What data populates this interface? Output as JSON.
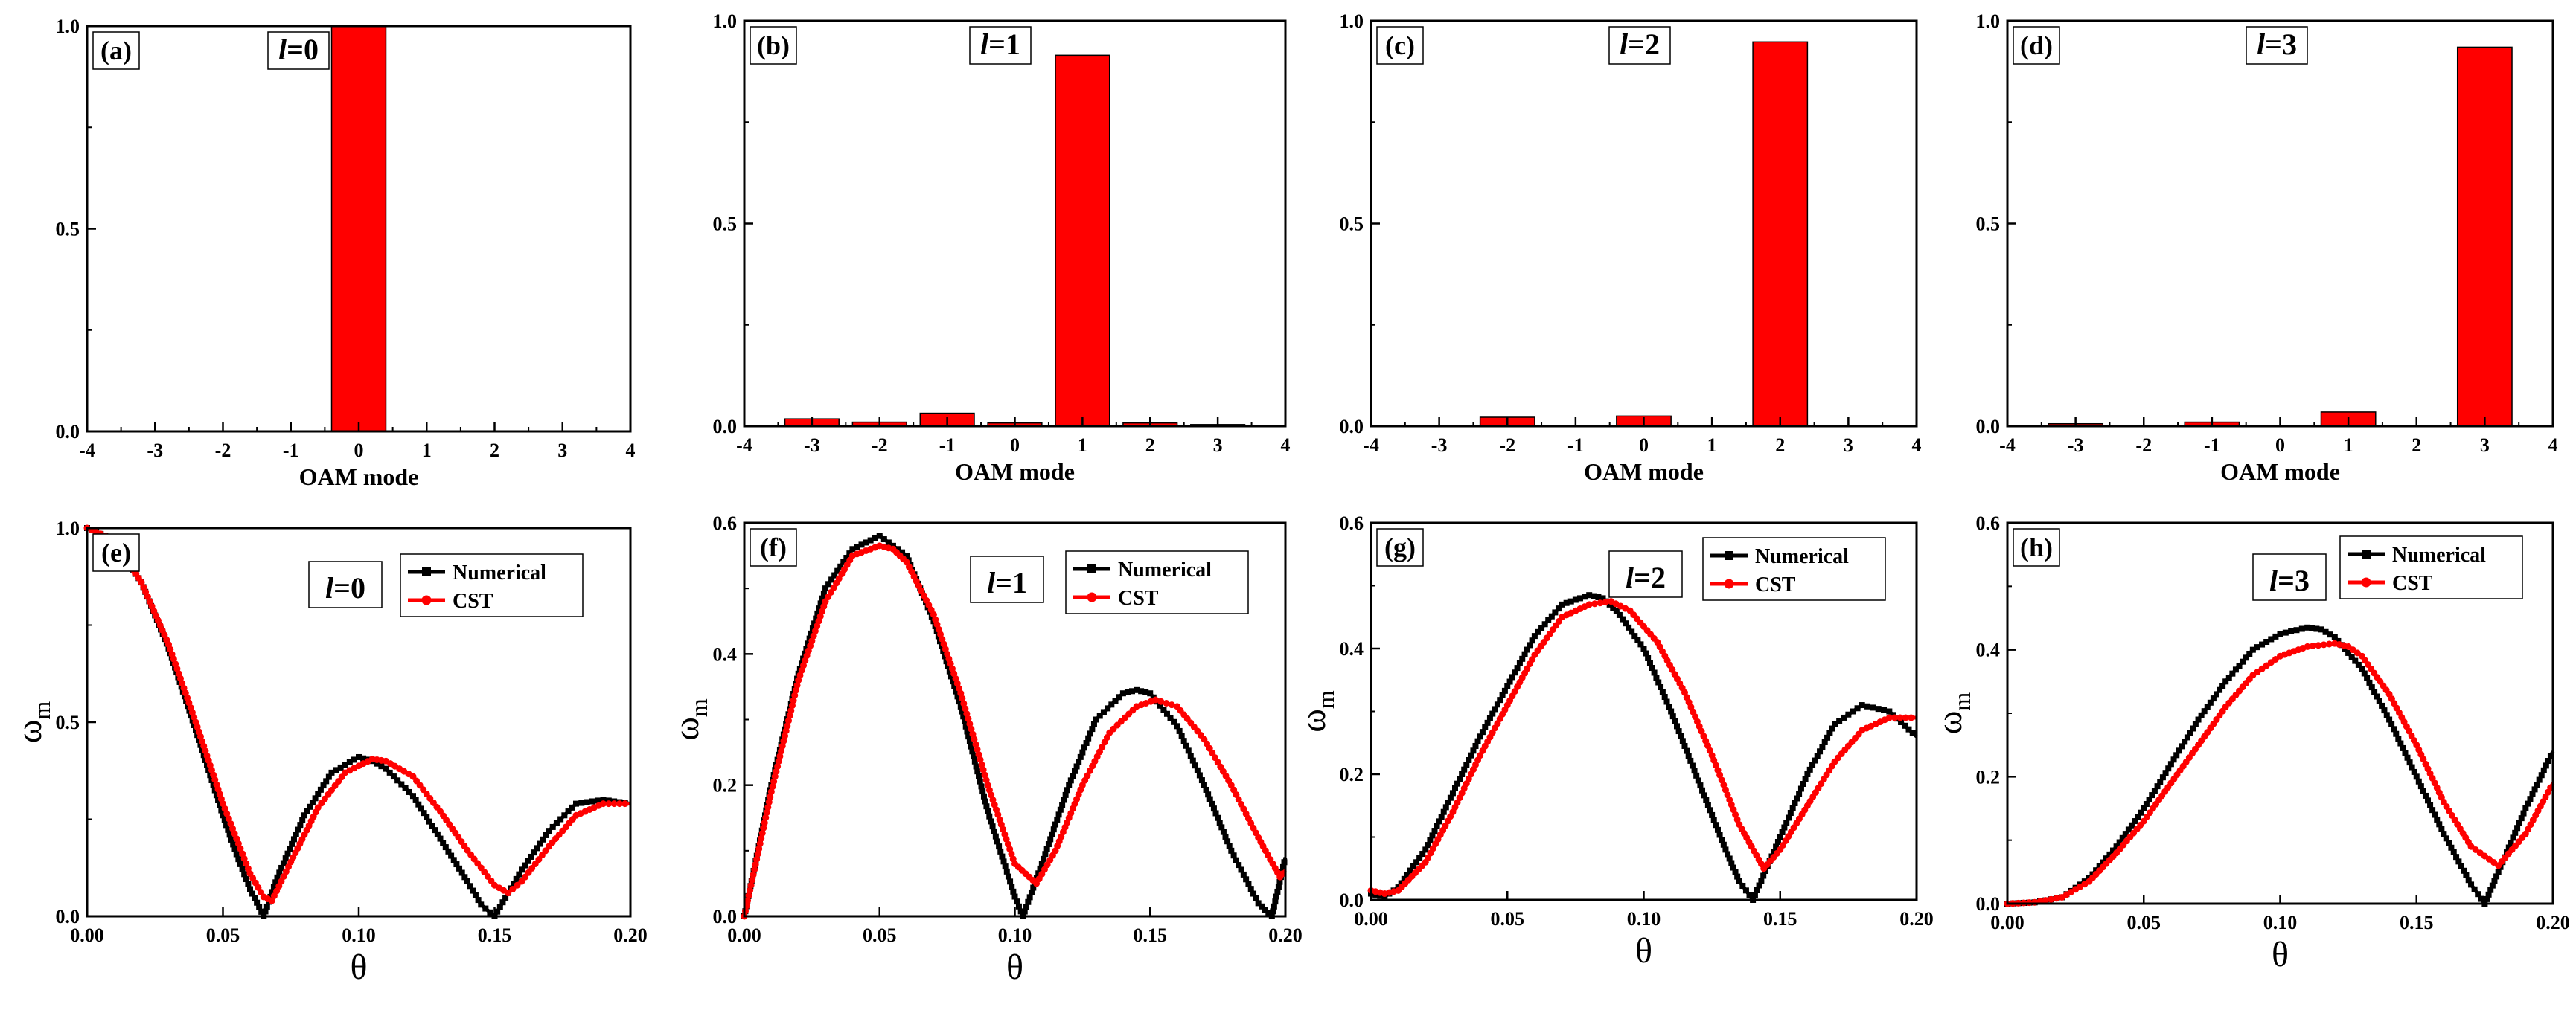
{
  "chart_data": [
    {
      "panel": "(a)",
      "mode_label_var": "l",
      "mode_label_val": "=0",
      "type": "bar",
      "categories": [
        -3,
        -2,
        -1,
        0,
        1,
        2,
        3
      ],
      "values": [
        0,
        0,
        0,
        1.0,
        0,
        0,
        0
      ],
      "xlim": [
        -4,
        4
      ],
      "ylim": [
        0,
        1.0
      ],
      "xticks": [
        "-4",
        "-3",
        "-2",
        "-1",
        "0",
        "1",
        "2",
        "3",
        "4"
      ],
      "yticks": [
        "0.0",
        "0.5",
        "1.0"
      ],
      "xlabel": "OAM mode",
      "ylabel": ""
    },
    {
      "panel": "(b)",
      "mode_label_var": "l",
      "mode_label_val": "=1",
      "type": "bar",
      "categories": [
        -3,
        -2,
        -1,
        0,
        1,
        2,
        3
      ],
      "values": [
        0.018,
        0.01,
        0.032,
        0.008,
        0.915,
        0.008,
        0.004
      ],
      "xlim": [
        -4,
        4
      ],
      "ylim": [
        0,
        1.0
      ],
      "xticks": [
        "-4",
        "-3",
        "-2",
        "-1",
        "0",
        "1",
        "2",
        "3",
        "4"
      ],
      "yticks": [
        "0.0",
        "0.5",
        "1.0"
      ],
      "xlabel": "OAM mode",
      "ylabel": ""
    },
    {
      "panel": "(c)",
      "mode_label_var": "l",
      "mode_label_val": "=2",
      "type": "bar",
      "categories": [
        -3,
        -2,
        -1,
        0,
        1,
        2,
        3
      ],
      "values": [
        0,
        0.022,
        0,
        0.025,
        0,
        0.948,
        0
      ],
      "xlim": [
        -4,
        4
      ],
      "ylim": [
        0,
        1.0
      ],
      "xticks": [
        "-4",
        "-3",
        "-2",
        "-1",
        "0",
        "1",
        "2",
        "3",
        "4"
      ],
      "yticks": [
        "0.0",
        "0.5",
        "1.0"
      ],
      "xlabel": "OAM mode",
      "ylabel": ""
    },
    {
      "panel": "(d)",
      "mode_label_var": "l",
      "mode_label_val": "=3",
      "type": "bar",
      "categories": [
        -3,
        -2,
        -1,
        0,
        1,
        2,
        3
      ],
      "values": [
        0.006,
        0,
        0.01,
        0,
        0.035,
        0,
        0.935
      ],
      "xlim": [
        -4,
        4
      ],
      "ylim": [
        0,
        1.0
      ],
      "xticks": [
        "-4",
        "-3",
        "-2",
        "-1",
        "0",
        "1",
        "2",
        "3",
        "4"
      ],
      "yticks": [
        "0.0",
        "0.5",
        "1.0"
      ],
      "xlabel": "OAM mode",
      "ylabel": ""
    },
    {
      "panel": "(e)",
      "mode_label_var": "l",
      "mode_label_val": "=0",
      "type": "line",
      "xlim": [
        0,
        0.2
      ],
      "ylim": [
        0,
        1.0
      ],
      "xticks": [
        "0.00",
        "0.05",
        "0.10",
        "0.15",
        "0.20"
      ],
      "yticks": [
        "0.0",
        "0.5",
        "1.0"
      ],
      "xlabel": "θ",
      "ylabel_main": "ω",
      "ylabel_sub": "m",
      "series": [
        {
          "name": "Numerical",
          "color": "#000000",
          "x": [
            0,
            0.01,
            0.02,
            0.03,
            0.04,
            0.05,
            0.055,
            0.06,
            0.065,
            0.07,
            0.08,
            0.09,
            0.1,
            0.105,
            0.11,
            0.12,
            0.13,
            0.14,
            0.145,
            0.15,
            0.155,
            0.16,
            0.17,
            0.18,
            0.19,
            0.2
          ],
          "y": [
            1.0,
            0.97,
            0.86,
            0.69,
            0.48,
            0.26,
            0.16,
            0.07,
            0.0,
            0.1,
            0.26,
            0.37,
            0.41,
            0.4,
            0.38,
            0.31,
            0.2,
            0.09,
            0.03,
            0.0,
            0.06,
            0.12,
            0.22,
            0.29,
            0.3,
            0.29
          ]
        },
        {
          "name": "CST",
          "color": "#ff0000",
          "x": [
            0,
            0.01,
            0.02,
            0.03,
            0.04,
            0.05,
            0.06,
            0.065,
            0.068,
            0.075,
            0.085,
            0.095,
            0.105,
            0.11,
            0.12,
            0.13,
            0.14,
            0.15,
            0.155,
            0.16,
            0.17,
            0.18,
            0.19,
            0.2
          ],
          "y": [
            1.0,
            0.97,
            0.86,
            0.7,
            0.5,
            0.29,
            0.11,
            0.05,
            0.04,
            0.14,
            0.28,
            0.37,
            0.405,
            0.4,
            0.36,
            0.27,
            0.17,
            0.08,
            0.06,
            0.09,
            0.18,
            0.26,
            0.29,
            0.29
          ]
        }
      ]
    },
    {
      "panel": "(f)",
      "mode_label_var": "l",
      "mode_label_val": "=1",
      "type": "line",
      "xlim": [
        0,
        0.2
      ],
      "ylim": [
        0,
        0.6
      ],
      "xticks": [
        "0.00",
        "0.05",
        "0.10",
        "0.15",
        "0.20"
      ],
      "yticks": [
        "0.0",
        "0.2",
        "0.4",
        "0.6"
      ],
      "xlabel": "θ",
      "ylabel_main": "ω",
      "ylabel_sub": "m",
      "series": [
        {
          "name": "Numerical",
          "color": "#000000",
          "x": [
            0,
            0.01,
            0.02,
            0.03,
            0.04,
            0.05,
            0.06,
            0.07,
            0.08,
            0.09,
            0.1,
            0.103,
            0.11,
            0.12,
            0.13,
            0.14,
            0.145,
            0.15,
            0.16,
            0.17,
            0.18,
            0.19,
            0.195,
            0.2
          ],
          "y": [
            0.0,
            0.2,
            0.37,
            0.5,
            0.56,
            0.58,
            0.55,
            0.45,
            0.32,
            0.16,
            0.03,
            0.0,
            0.08,
            0.2,
            0.3,
            0.34,
            0.345,
            0.34,
            0.29,
            0.2,
            0.1,
            0.02,
            0.0,
            0.09
          ]
        },
        {
          "name": "CST",
          "color": "#ff0000",
          "x": [
            0,
            0.01,
            0.02,
            0.03,
            0.04,
            0.05,
            0.055,
            0.06,
            0.07,
            0.08,
            0.09,
            0.1,
            0.108,
            0.115,
            0.125,
            0.135,
            0.145,
            0.152,
            0.16,
            0.17,
            0.18,
            0.19,
            0.198,
            0.2
          ],
          "y": [
            0.0,
            0.19,
            0.36,
            0.48,
            0.55,
            0.565,
            0.56,
            0.54,
            0.46,
            0.34,
            0.2,
            0.08,
            0.05,
            0.1,
            0.2,
            0.28,
            0.32,
            0.33,
            0.32,
            0.27,
            0.2,
            0.12,
            0.06,
            0.07
          ]
        }
      ]
    },
    {
      "panel": "(g)",
      "mode_label_var": "l",
      "mode_label_val": "=2",
      "type": "line",
      "xlim": [
        0,
        0.2
      ],
      "ylim": [
        0,
        0.6
      ],
      "xticks": [
        "0.00",
        "0.05",
        "0.10",
        "0.15",
        "0.20"
      ],
      "yticks": [
        "0.0",
        "0.2",
        "0.4",
        "0.6"
      ],
      "xlabel": "θ",
      "ylabel_main": "ω",
      "ylabel_sub": "m",
      "series": [
        {
          "name": "Numerical",
          "color": "#000000",
          "x": [
            0,
            0.005,
            0.01,
            0.02,
            0.03,
            0.04,
            0.05,
            0.06,
            0.07,
            0.08,
            0.085,
            0.09,
            0.1,
            0.11,
            0.12,
            0.13,
            0.135,
            0.14,
            0.15,
            0.16,
            0.17,
            0.18,
            0.19,
            0.2
          ],
          "y": [
            0.01,
            0.005,
            0.02,
            0.08,
            0.17,
            0.26,
            0.34,
            0.42,
            0.47,
            0.485,
            0.48,
            0.46,
            0.4,
            0.3,
            0.19,
            0.08,
            0.03,
            0.0,
            0.1,
            0.2,
            0.28,
            0.31,
            0.3,
            0.26
          ]
        },
        {
          "name": "CST",
          "color": "#ff0000",
          "x": [
            0,
            0.005,
            0.01,
            0.02,
            0.03,
            0.04,
            0.05,
            0.06,
            0.07,
            0.08,
            0.088,
            0.095,
            0.105,
            0.115,
            0.125,
            0.135,
            0.144,
            0.15,
            0.16,
            0.17,
            0.18,
            0.19,
            0.2
          ],
          "y": [
            0.015,
            0.01,
            0.015,
            0.06,
            0.14,
            0.23,
            0.31,
            0.39,
            0.45,
            0.47,
            0.475,
            0.46,
            0.41,
            0.33,
            0.23,
            0.12,
            0.05,
            0.08,
            0.15,
            0.22,
            0.27,
            0.29,
            0.29
          ]
        }
      ]
    },
    {
      "panel": "(h)",
      "mode_label_var": "l",
      "mode_label_val": "=3",
      "type": "line",
      "xlim": [
        0,
        0.2
      ],
      "ylim": [
        0,
        0.6
      ],
      "xticks": [
        "0.00",
        "0.05",
        "0.10",
        "0.15",
        "0.20"
      ],
      "yticks": [
        "0.0",
        "0.2",
        "0.4",
        "0.6"
      ],
      "xlabel": "θ",
      "ylabel_main": "ω",
      "ylabel_sub": "m",
      "series": [
        {
          "name": "Numerical",
          "color": "#000000",
          "x": [
            0,
            0.01,
            0.02,
            0.03,
            0.04,
            0.05,
            0.06,
            0.07,
            0.08,
            0.09,
            0.1,
            0.11,
            0.115,
            0.12,
            0.13,
            0.14,
            0.15,
            0.16,
            0.17,
            0.175,
            0.18,
            0.19,
            0.2
          ],
          "y": [
            0.0,
            0.002,
            0.01,
            0.04,
            0.09,
            0.15,
            0.22,
            0.29,
            0.35,
            0.4,
            0.425,
            0.435,
            0.432,
            0.42,
            0.37,
            0.29,
            0.2,
            0.11,
            0.03,
            0.0,
            0.05,
            0.15,
            0.24
          ]
        },
        {
          "name": "CST",
          "color": "#ff0000",
          "x": [
            0,
            0.01,
            0.02,
            0.03,
            0.04,
            0.05,
            0.06,
            0.07,
            0.08,
            0.09,
            0.1,
            0.11,
            0.12,
            0.125,
            0.13,
            0.14,
            0.15,
            0.16,
            0.17,
            0.18,
            0.19,
            0.2
          ],
          "y": [
            0.0,
            0.002,
            0.01,
            0.035,
            0.08,
            0.13,
            0.19,
            0.25,
            0.31,
            0.36,
            0.39,
            0.405,
            0.41,
            0.405,
            0.39,
            0.33,
            0.25,
            0.16,
            0.09,
            0.06,
            0.11,
            0.19
          ]
        }
      ]
    }
  ]
}
